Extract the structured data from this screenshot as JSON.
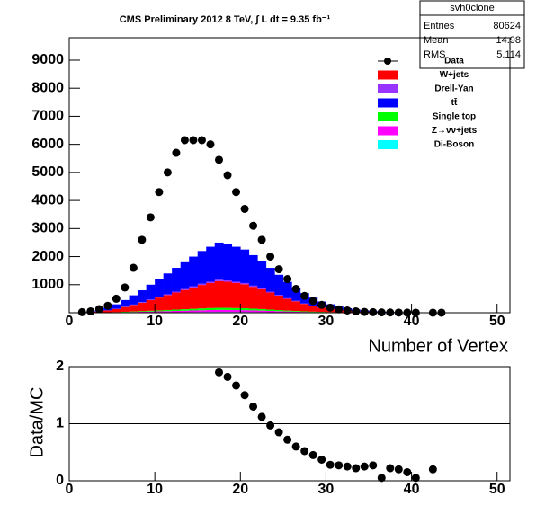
{
  "chart_data": [
    {
      "type": "stacked_histogram",
      "title": "CMS Preliminary 2012 8 TeV, ∫ L dt = 9.35 fb⁻¹",
      "x_label": "Number of Vertex",
      "xlim": [
        0,
        51.5
      ],
      "xticks": [
        0,
        10,
        20,
        30,
        40,
        50
      ],
      "ylim": [
        0,
        9800
      ],
      "yticks": [
        1000,
        2000,
        3000,
        4000,
        5000,
        6000,
        7000,
        8000,
        9000
      ],
      "bins": [
        0,
        1,
        2,
        3,
        4,
        5,
        6,
        7,
        8,
        9,
        10,
        11,
        12,
        13,
        14,
        15,
        16,
        17,
        18,
        19,
        20,
        21,
        22,
        23,
        24,
        25,
        26,
        27,
        28,
        29,
        30,
        31,
        32,
        33,
        34,
        35,
        36,
        37,
        38,
        39,
        40,
        41,
        42,
        43,
        44,
        45
      ],
      "series": [
        {
          "name": "Di-Boson",
          "color": "#00ffff",
          "values": [
            0,
            0,
            0,
            1,
            2,
            3,
            5,
            6,
            8,
            10,
            12,
            14,
            16,
            18,
            20,
            22,
            24,
            25,
            25,
            24,
            23,
            21,
            19,
            16,
            14,
            11,
            9,
            7,
            5,
            4,
            3,
            2,
            2,
            1,
            1,
            1,
            0,
            0,
            0,
            0,
            0,
            0,
            0,
            0,
            0
          ]
        },
        {
          "name": "Z→νν+jets",
          "color": "#ff00ff",
          "values": [
            0,
            0,
            1,
            3,
            5,
            9,
            14,
            19,
            24,
            30,
            36,
            42,
            48,
            54,
            60,
            66,
            71,
            75,
            74,
            71,
            68,
            62,
            56,
            48,
            41,
            33,
            27,
            21,
            16,
            12,
            9,
            7,
            5,
            3,
            2,
            2,
            1,
            1,
            1,
            0,
            0,
            0,
            0,
            0,
            0
          ]
        },
        {
          "name": "Single top",
          "color": "#00ff00",
          "values": [
            0,
            0,
            1,
            3,
            5,
            9,
            14,
            19,
            24,
            30,
            36,
            42,
            48,
            54,
            60,
            66,
            71,
            75,
            74,
            71,
            68,
            62,
            56,
            48,
            41,
            33,
            27,
            21,
            16,
            12,
            9,
            7,
            5,
            3,
            2,
            2,
            1,
            1,
            1,
            0,
            0,
            0,
            0,
            0,
            0
          ]
        },
        {
          "name": "W+jets",
          "color": "#ff0000",
          "values": [
            0,
            4,
            15,
            34,
            68,
            114,
            171,
            236,
            304,
            380,
            456,
            532,
            608,
            684,
            760,
            836,
            893,
            950,
            931,
            893,
            855,
            779,
            703,
            608,
            513,
            418,
            342,
            266,
            205,
            152,
            114,
            84,
            61,
            44,
            30,
            21,
            14,
            10,
            7,
            5,
            3,
            2,
            1,
            1,
            0
          ]
        },
        {
          "name": "Drell-Yan",
          "color": "#9933ff",
          "values": [
            0,
            0,
            1,
            2,
            4,
            6,
            9,
            12,
            16,
            20,
            24,
            28,
            32,
            36,
            40,
            44,
            47,
            50,
            49,
            47,
            45,
            41,
            37,
            32,
            27,
            22,
            18,
            14,
            11,
            8,
            6,
            4,
            3,
            2,
            2,
            1,
            1,
            1,
            0,
            0,
            0,
            0,
            0,
            0,
            0
          ]
        },
        {
          "name": "tt̄",
          "color": "#0000ff",
          "values": [
            0,
            5,
            21,
            48,
            95,
            159,
            239,
            329,
            424,
            530,
            636,
            742,
            848,
            954,
            1060,
            1166,
            1246,
            1325,
            1299,
            1246,
            1193,
            1087,
            981,
            848,
            716,
            583,
            477,
            371,
            286,
            212,
            159,
            117,
            85,
            61,
            42,
            29,
            20,
            14,
            10,
            6,
            4,
            3,
            2,
            1,
            1
          ]
        }
      ],
      "data": {
        "name": "Data",
        "color": "#000000",
        "x": [
          1.5,
          2.5,
          3.5,
          4.5,
          5.5,
          6.5,
          7.5,
          8.5,
          9.5,
          10.5,
          11.5,
          12.5,
          13.5,
          14.5,
          15.5,
          16.5,
          17.5,
          18.5,
          19.5,
          20.5,
          21.5,
          22.5,
          23.5,
          24.5,
          25.5,
          26.5,
          27.5,
          28.5,
          29.5,
          30.5,
          31.5,
          32.5,
          33.5,
          34.5,
          35.5,
          36.5,
          37.5,
          38.5,
          39.5,
          40.5,
          42.5,
          43.5
        ],
        "values": [
          20,
          50,
          130,
          250,
          500,
          900,
          1600,
          2600,
          3400,
          4300,
          5000,
          5700,
          6150,
          6150,
          6150,
          6000,
          5450,
          4900,
          4300,
          3700,
          3100,
          2600,
          2000,
          1550,
          1200,
          850,
          600,
          420,
          280,
          180,
          120,
          80,
          50,
          30,
          20,
          12,
          8,
          5,
          3,
          2,
          1,
          1
        ]
      },
      "legend_order": [
        "Data",
        "W+jets",
        "Drell-Yan",
        "tt̄",
        "Single top",
        "Z→νν+jets",
        "Di-Boson"
      ]
    },
    {
      "type": "ratio",
      "y_label": "Data/MC",
      "xlim": [
        0,
        51.5
      ],
      "xticks": [
        0,
        10,
        20,
        30,
        40,
        50
      ],
      "ylim": [
        0,
        2
      ],
      "yticks": [
        0,
        1,
        2
      ],
      "reference_line": 1,
      "x": [
        17.5,
        18.5,
        19.5,
        20.5,
        21.5,
        22.5,
        23.5,
        24.5,
        25.5,
        26.5,
        27.5,
        28.5,
        29.5,
        30.5,
        31.5,
        32.5,
        33.5,
        34.5,
        35.5,
        36.5,
        37.5,
        38.5,
        39.5,
        40.5,
        42.5
      ],
      "values": [
        1.9,
        1.82,
        1.67,
        1.5,
        1.3,
        1.12,
        0.97,
        0.85,
        0.72,
        0.6,
        0.52,
        0.45,
        0.37,
        0.28,
        0.27,
        0.25,
        0.22,
        0.25,
        0.27,
        0.05,
        0.22,
        0.2,
        0.15,
        0.05,
        0.2
      ]
    }
  ],
  "stats_box": {
    "title": "svh0clone",
    "rows": [
      [
        "Entries",
        "80624"
      ],
      [
        "Mean",
        "14.98"
      ],
      [
        "RMS",
        "5.114"
      ]
    ]
  }
}
